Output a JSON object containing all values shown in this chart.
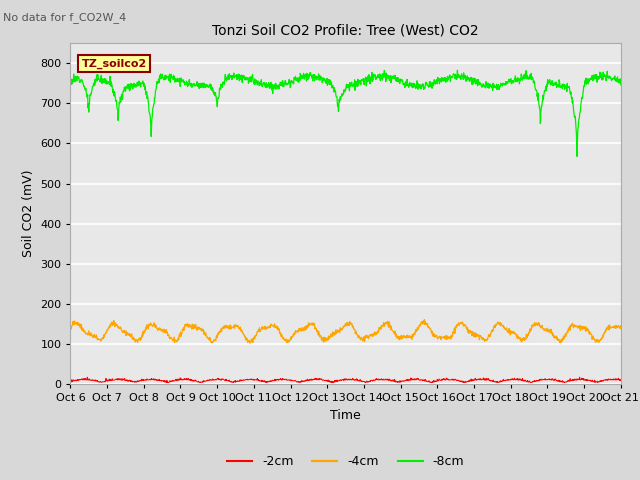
{
  "title": "Tonzi Soil CO2 Profile: Tree (West) CO2",
  "no_data_text": "No data for f_CO2W_4",
  "ylabel": "Soil CO2 (mV)",
  "xlabel": "Time",
  "legend_label": "TZ_soilco2",
  "series_labels": [
    "-2cm",
    "-4cm",
    "-8cm"
  ],
  "series_colors": [
    "#ff0000",
    "#ffa500",
    "#00ee00"
  ],
  "ylim": [
    0,
    850
  ],
  "yticks": [
    0,
    100,
    200,
    300,
    400,
    500,
    600,
    700,
    800
  ],
  "x_tick_labels": [
    "Oct 6",
    "Oct 7",
    "Oct 8",
    "Oct 9",
    "Oct 10",
    "Oct 11",
    "Oct 12",
    "Oct 13",
    "Oct 14",
    "Oct 15",
    "Oct 16",
    "Oct 17",
    "Oct 18",
    "Oct 19",
    "Oct 20",
    "Oct 21"
  ],
  "background_color": "#d8d8d8",
  "plot_bg_color": "#e8e8e8",
  "legend_box_color": "#ffff99",
  "legend_box_edge": "#8b0000",
  "legend_text_color": "#8b0000",
  "n_points": 1500,
  "green_base": 755,
  "orange_base": 130,
  "red_base": 5
}
